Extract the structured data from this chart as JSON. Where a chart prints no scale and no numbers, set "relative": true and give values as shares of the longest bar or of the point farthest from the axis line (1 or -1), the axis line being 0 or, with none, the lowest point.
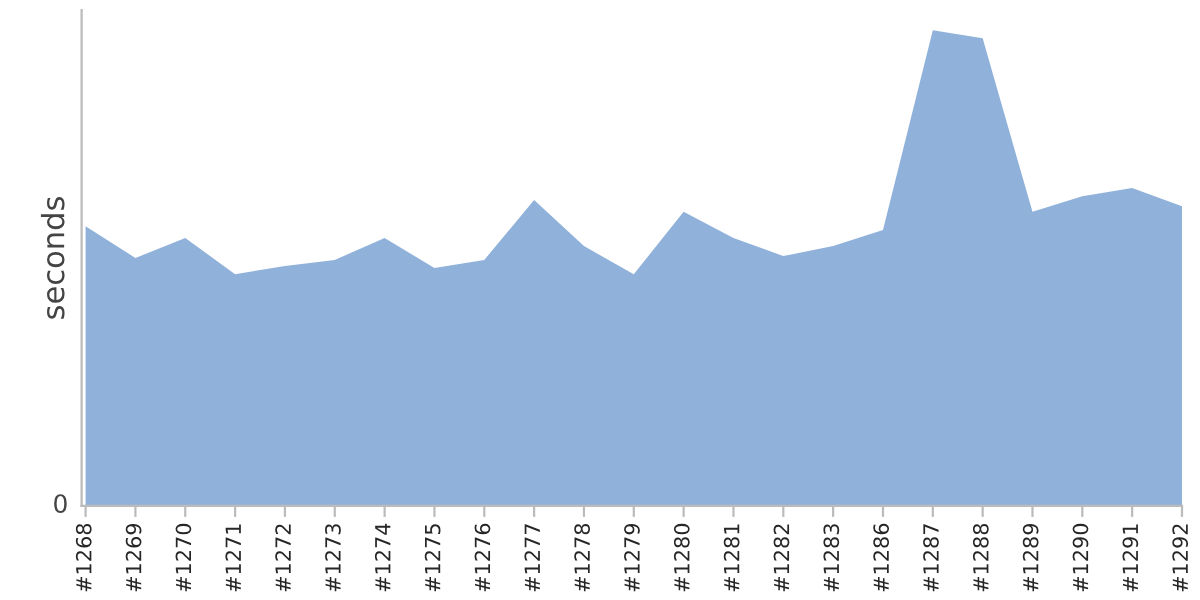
{
  "chart_data": {
    "type": "area",
    "ylabel": "seconds",
    "relative": true,
    "annotations": [
      "0"
    ],
    "color": "#8fb1da",
    "categories": [
      "#1268",
      "#1269",
      "#1270",
      "#1271",
      "#1272",
      "#1273",
      "#1274",
      "#1275",
      "#1276",
      "#1277",
      "#1278",
      "#1279",
      "#1280",
      "#1281",
      "#1282",
      "#1283",
      "#1286",
      "#1287",
      "#1288",
      "#1289",
      "#1290",
      "#1291",
      "#1292"
    ],
    "values": [
      0.588,
      0.521,
      0.563,
      0.487,
      0.504,
      0.517,
      0.563,
      0.5,
      0.517,
      0.643,
      0.546,
      0.487,
      0.618,
      0.563,
      0.525,
      0.546,
      0.58,
      1,
      0.983,
      0.618,
      0.651,
      0.668,
      0.63
    ],
    "grid": false,
    "legend": false
  }
}
